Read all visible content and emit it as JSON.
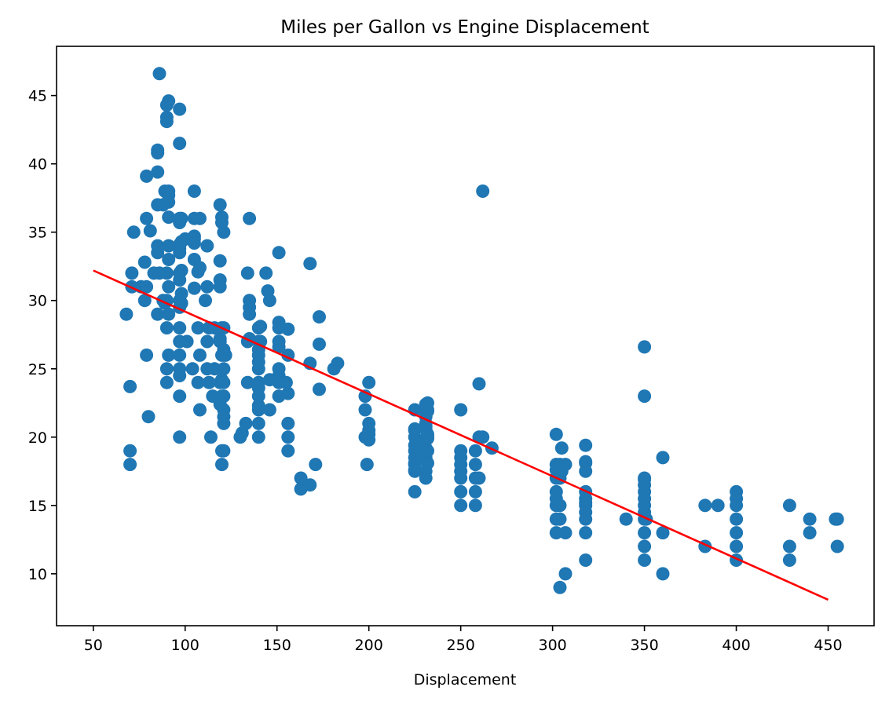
{
  "chart_data": {
    "type": "scatter",
    "title": "Miles per Gallon vs Engine Displacement",
    "xlabel": "Displacement",
    "ylabel": "",
    "xlim": [
      30,
      475
    ],
    "ylim": [
      6.2,
      48.6
    ],
    "xticks": [
      50,
      100,
      150,
      200,
      250,
      300,
      350,
      400,
      450
    ],
    "yticks": [
      10,
      15,
      20,
      25,
      30,
      35,
      40,
      45
    ],
    "grid": false,
    "legend": "none",
    "colors": {
      "points": "#1f77b4",
      "fit_line": "#ff0000"
    },
    "series": [
      {
        "kind": "scatter",
        "points": [
          [
            68,
            29
          ],
          [
            70,
            18
          ],
          [
            70,
            19
          ],
          [
            70,
            23.7
          ],
          [
            71,
            31
          ],
          [
            71,
            32
          ],
          [
            72,
            35
          ],
          [
            76,
            31
          ],
          [
            78,
            30
          ],
          [
            78,
            32.8
          ],
          [
            79,
            36
          ],
          [
            79,
            39.1
          ],
          [
            79,
            26
          ],
          [
            79,
            31
          ],
          [
            80,
            21.5
          ],
          [
            81,
            35.1
          ],
          [
            83,
            32
          ],
          [
            85,
            39.4
          ],
          [
            85,
            40.8
          ],
          [
            85,
            41
          ],
          [
            85,
            37
          ],
          [
            85,
            33.5
          ],
          [
            85,
            34
          ],
          [
            85,
            29
          ],
          [
            86,
            46.6
          ],
          [
            86,
            32
          ],
          [
            88,
            37
          ],
          [
            88,
            30
          ],
          [
            89,
            38
          ],
          [
            89,
            29.8
          ],
          [
            90,
            43.1
          ],
          [
            90,
            43.4
          ],
          [
            90,
            44.3
          ],
          [
            90,
            28
          ],
          [
            90,
            25
          ],
          [
            90,
            24
          ],
          [
            90,
            30
          ],
          [
            90,
            32
          ],
          [
            91,
            44.6
          ],
          [
            91,
            37.7
          ],
          [
            91,
            38
          ],
          [
            91,
            37.2
          ],
          [
            91,
            36.1
          ],
          [
            91,
            33
          ],
          [
            91,
            34
          ],
          [
            91,
            31
          ],
          [
            91,
            26
          ],
          [
            91,
            29
          ],
          [
            97,
            44
          ],
          [
            97,
            41.5
          ],
          [
            97,
            36
          ],
          [
            97,
            35.7
          ],
          [
            97,
            34.1
          ],
          [
            97,
            33.8
          ],
          [
            97,
            33.5
          ],
          [
            97,
            32
          ],
          [
            97,
            31.5
          ],
          [
            97,
            30
          ],
          [
            97,
            29.5
          ],
          [
            97,
            28
          ],
          [
            97,
            27
          ],
          [
            97,
            26
          ],
          [
            97,
            24.5
          ],
          [
            97,
            23
          ],
          [
            97,
            20
          ],
          [
            97,
            25
          ],
          [
            98,
            36
          ],
          [
            98,
            34.3
          ],
          [
            98,
            32.2
          ],
          [
            98,
            29.8
          ],
          [
            98,
            30.5
          ],
          [
            100,
            34.5
          ],
          [
            101,
            27
          ],
          [
            104,
            25
          ],
          [
            105,
            38
          ],
          [
            105,
            36
          ],
          [
            105,
            34.7
          ],
          [
            105,
            34.5
          ],
          [
            105,
            33
          ],
          [
            105,
            30.9
          ],
          [
            105,
            34.2
          ],
          [
            107,
            32.1
          ],
          [
            107,
            28
          ],
          [
            107,
            24
          ],
          [
            108,
            36
          ],
          [
            108,
            32.4
          ],
          [
            108,
            22
          ],
          [
            108,
            26
          ],
          [
            111,
            30
          ],
          [
            112,
            34
          ],
          [
            112,
            31
          ],
          [
            112,
            27
          ],
          [
            112,
            25
          ],
          [
            113,
            28
          ],
          [
            113,
            24
          ],
          [
            114,
            20
          ],
          [
            115,
            23
          ],
          [
            116,
            25
          ],
          [
            116,
            28
          ],
          [
            119,
            37
          ],
          [
            119,
            32.9
          ],
          [
            119,
            31.5
          ],
          [
            119,
            31
          ],
          [
            119,
            24
          ],
          [
            119,
            27.2
          ],
          [
            119,
            22.4
          ],
          [
            119,
            27
          ],
          [
            120,
            36.1
          ],
          [
            120,
            35.7
          ],
          [
            120,
            19
          ],
          [
            120,
            24.2
          ],
          [
            120,
            28
          ],
          [
            120,
            18
          ],
          [
            120,
            26
          ],
          [
            120,
            23
          ],
          [
            121,
            35
          ],
          [
            121,
            26
          ],
          [
            121,
            25
          ],
          [
            121,
            24
          ],
          [
            121,
            23
          ],
          [
            121,
            22
          ],
          [
            121,
            21
          ],
          [
            121,
            19
          ],
          [
            121,
            28
          ],
          [
            121,
            21.5
          ],
          [
            121,
            26.4
          ],
          [
            122,
            26
          ],
          [
            130,
            20
          ],
          [
            131,
            20.3
          ],
          [
            133,
            21
          ],
          [
            134,
            27
          ],
          [
            134,
            32
          ],
          [
            134,
            24
          ],
          [
            135,
            30
          ],
          [
            135,
            36
          ],
          [
            135,
            29.5
          ],
          [
            135,
            29
          ],
          [
            135,
            27.2
          ],
          [
            140,
            28
          ],
          [
            140,
            26.4
          ],
          [
            140,
            26
          ],
          [
            140,
            25.5
          ],
          [
            140,
            24
          ],
          [
            140,
            23
          ],
          [
            140,
            22.3
          ],
          [
            140,
            21
          ],
          [
            140,
            20
          ],
          [
            140,
            27
          ],
          [
            140,
            25
          ],
          [
            140,
            23.6
          ],
          [
            140,
            22
          ],
          [
            141,
            27
          ],
          [
            141,
            28.1
          ],
          [
            144,
            32
          ],
          [
            145,
            30.7
          ],
          [
            146,
            30
          ],
          [
            146,
            22
          ],
          [
            146,
            24.2
          ],
          [
            151,
            33.5
          ],
          [
            151,
            28.4
          ],
          [
            151,
            27
          ],
          [
            151,
            26.6
          ],
          [
            151,
            24.5
          ],
          [
            151,
            24
          ],
          [
            151,
            23
          ],
          [
            151,
            25
          ],
          [
            151,
            28
          ],
          [
            155,
            24
          ],
          [
            156,
            27.9
          ],
          [
            156,
            26
          ],
          [
            156,
            23.2
          ],
          [
            156,
            21
          ],
          [
            156,
            20
          ],
          [
            156,
            19
          ],
          [
            163,
            17
          ],
          [
            163,
            16.2
          ],
          [
            168,
            32.7
          ],
          [
            168,
            16.5
          ],
          [
            168,
            25.4
          ],
          [
            171,
            18
          ],
          [
            173,
            28.8
          ],
          [
            173,
            26.8
          ],
          [
            173,
            23.5
          ],
          [
            181,
            25
          ],
          [
            183,
            25.4
          ],
          [
            198,
            23
          ],
          [
            198,
            22
          ],
          [
            198,
            20
          ],
          [
            199,
            20
          ],
          [
            199,
            18
          ],
          [
            200,
            24
          ],
          [
            200,
            21
          ],
          [
            200,
            20.5
          ],
          [
            200,
            20.2
          ],
          [
            200,
            19.8
          ],
          [
            225,
            22
          ],
          [
            225,
            20.5
          ],
          [
            225,
            20
          ],
          [
            225,
            19.4
          ],
          [
            225,
            19
          ],
          [
            225,
            18.5
          ],
          [
            225,
            18
          ],
          [
            225,
            17.5
          ],
          [
            225,
            16
          ],
          [
            225,
            20.6
          ],
          [
            225,
            18.1
          ],
          [
            225,
            17.6
          ],
          [
            231,
            21
          ],
          [
            231,
            20.6
          ],
          [
            231,
            19.2
          ],
          [
            231,
            17.5
          ],
          [
            231,
            17
          ],
          [
            231,
            22.4
          ],
          [
            231,
            21.5
          ],
          [
            231,
            20.8
          ],
          [
            231,
            19.8
          ],
          [
            231,
            18.5
          ],
          [
            232,
            22.5
          ],
          [
            232,
            20.2
          ],
          [
            232,
            19
          ],
          [
            232,
            18.1
          ],
          [
            232,
            20
          ],
          [
            232,
            22
          ],
          [
            232,
            21.9
          ],
          [
            232,
            19.9
          ],
          [
            250,
            22
          ],
          [
            250,
            19
          ],
          [
            250,
            18
          ],
          [
            250,
            17
          ],
          [
            250,
            16
          ],
          [
            250,
            15
          ],
          [
            250,
            18.5
          ],
          [
            250,
            17.5
          ],
          [
            258,
            19
          ],
          [
            258,
            18
          ],
          [
            258,
            17
          ],
          [
            258,
            16
          ],
          [
            258,
            15
          ],
          [
            260,
            23.9
          ],
          [
            260,
            20
          ],
          [
            260,
            17
          ],
          [
            262,
            38
          ],
          [
            262,
            20
          ],
          [
            267,
            19.2
          ],
          [
            302,
            20.2
          ],
          [
            302,
            18
          ],
          [
            302,
            17
          ],
          [
            302,
            16
          ],
          [
            302,
            15
          ],
          [
            302,
            14
          ],
          [
            302,
            13
          ],
          [
            302,
            17.6
          ],
          [
            302,
            15.5
          ],
          [
            304,
            17
          ],
          [
            304,
            15
          ],
          [
            304,
            14
          ],
          [
            304,
            9
          ],
          [
            304,
            18
          ],
          [
            305,
            19.2
          ],
          [
            305,
            17.5
          ],
          [
            307,
            18
          ],
          [
            307,
            13
          ],
          [
            307,
            10
          ],
          [
            318,
            19.4
          ],
          [
            318,
            18.2
          ],
          [
            318,
            18.1
          ],
          [
            318,
            17.5
          ],
          [
            318,
            16
          ],
          [
            318,
            15.5
          ],
          [
            318,
            15
          ],
          [
            318,
            14.5
          ],
          [
            318,
            14
          ],
          [
            318,
            13
          ],
          [
            318,
            11
          ],
          [
            318,
            15.2
          ],
          [
            340,
            14
          ],
          [
            350,
            26.6
          ],
          [
            350,
            23
          ],
          [
            350,
            16.9
          ],
          [
            350,
            16.5
          ],
          [
            350,
            16
          ],
          [
            350,
            15.5
          ],
          [
            350,
            15
          ],
          [
            350,
            14
          ],
          [
            350,
            13
          ],
          [
            350,
            12
          ],
          [
            350,
            11
          ],
          [
            350,
            17
          ],
          [
            350,
            14.5
          ],
          [
            351,
            14
          ],
          [
            360,
            18.5
          ],
          [
            360,
            13
          ],
          [
            360,
            10
          ],
          [
            383,
            15
          ],
          [
            383,
            12
          ],
          [
            390,
            15
          ],
          [
            400,
            16
          ],
          [
            400,
            15.5
          ],
          [
            400,
            15
          ],
          [
            400,
            14
          ],
          [
            400,
            13
          ],
          [
            400,
            12
          ],
          [
            400,
            11
          ],
          [
            429,
            15
          ],
          [
            429,
            12
          ],
          [
            429,
            11
          ],
          [
            440,
            14
          ],
          [
            440,
            13
          ],
          [
            454,
            14
          ],
          [
            455,
            14
          ],
          [
            455,
            12
          ]
        ]
      },
      {
        "kind": "line",
        "points": [
          [
            50,
            32.2
          ],
          [
            450,
            8.1
          ]
        ]
      }
    ]
  }
}
